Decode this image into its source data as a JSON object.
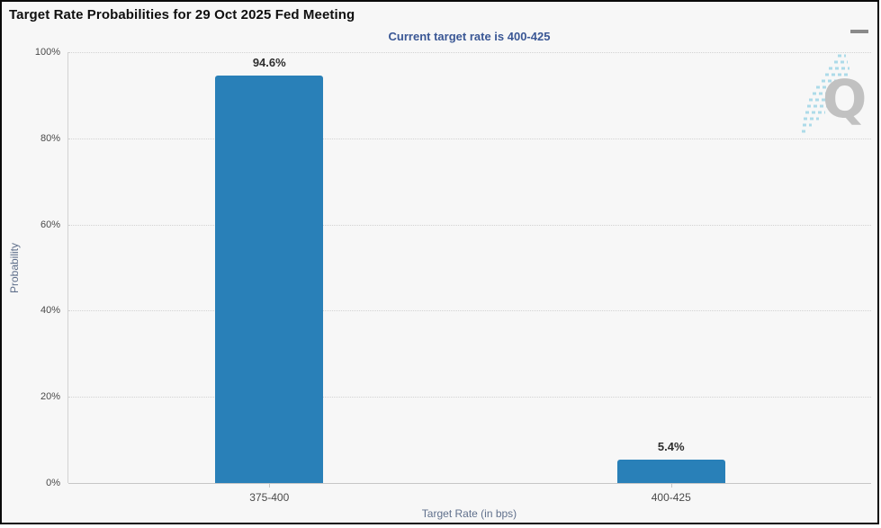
{
  "header": {
    "title": "Target Rate Probabilities for 29 Oct 2025 Fed Meeting",
    "menu_icon": "hamburger-menu-icon"
  },
  "chart_data": {
    "type": "bar",
    "title": "Target Rate Probabilities for 29 Oct 2025 Fed Meeting",
    "subtitle": "Current target rate is 400-425",
    "categories": [
      "375-400",
      "400-425"
    ],
    "values": [
      94.6,
      5.4
    ],
    "data_labels": [
      "94.6%",
      "5.4%"
    ],
    "xlabel": "Target Rate (in bps)",
    "ylabel": "Probability",
    "ylim": [
      0,
      100
    ],
    "yticks": [
      {
        "value": 0,
        "label": "0%"
      },
      {
        "value": 20,
        "label": "20%"
      },
      {
        "value": 40,
        "label": "40%"
      },
      {
        "value": 60,
        "label": "60%"
      },
      {
        "value": 80,
        "label": "80%"
      },
      {
        "value": 100,
        "label": "100%"
      }
    ],
    "grid": "horizontal-dotted",
    "legend": "none",
    "bar_color": "#2980b8"
  },
  "watermark": {
    "letter": "Q"
  },
  "colors": {
    "background": "#f7f7f7",
    "border": "#0a0a0a",
    "subtitle_blue": "#3a5795",
    "bar_blue": "#2980b8",
    "axis_title": "#60708c",
    "watermark_gray": "#bcbcbc",
    "watermark_blue": "#a5d9e8"
  }
}
